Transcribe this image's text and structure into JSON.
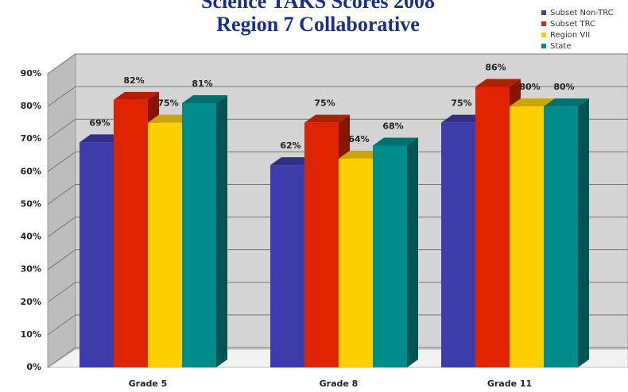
{
  "chart_data": {
    "type": "bar3d",
    "title": "Science TAKS Scores 2008",
    "subtitle": "Region 7 Collaborative",
    "categories": [
      "Grade 5",
      "Grade 8",
      "Grade 11"
    ],
    "series": [
      {
        "name": "Subset Non-TRC",
        "color": "#3c3caa",
        "values": [
          69,
          62,
          75
        ],
        "value_labels": [
          "69%",
          "62%",
          "75%"
        ]
      },
      {
        "name": "Subset TRC",
        "color": "#e02400",
        "values": [
          82,
          75,
          86
        ],
        "value_labels": [
          "82%",
          "75%",
          "86%"
        ]
      },
      {
        "name": "Region VII",
        "color": "#ffd000",
        "values": [
          75,
          64,
          80
        ],
        "value_labels": [
          "75%",
          "64%",
          "80%"
        ]
      },
      {
        "name": "State",
        "color": "#008c8a",
        "values": [
          81,
          68,
          80
        ],
        "value_labels": [
          "81%",
          "68%",
          "80%"
        ]
      }
    ],
    "ylim": [
      0,
      90
    ],
    "yticks": [
      {
        "value": 0,
        "label": "0%"
      },
      {
        "value": 10,
        "label": "10%"
      },
      {
        "value": 20,
        "label": "20%"
      },
      {
        "value": 30,
        "label": "30%"
      },
      {
        "value": 40,
        "label": "40%"
      },
      {
        "value": 50,
        "label": "50%"
      },
      {
        "value": 60,
        "label": "60%"
      },
      {
        "value": 70,
        "label": "70%"
      },
      {
        "value": 80,
        "label": "80%"
      },
      {
        "value": 90,
        "label": "90%"
      }
    ],
    "grid": true,
    "legend": "top-right"
  }
}
